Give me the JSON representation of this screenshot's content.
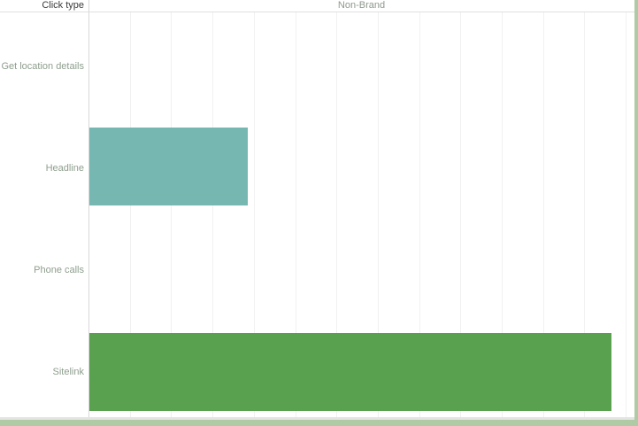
{
  "header": {
    "row_field": "Click type",
    "column_value": "Non-Brand"
  },
  "colors": {
    "teal_bar": "#76B7B2",
    "green_bar": "#59A14F",
    "gridline": "#F1F1F1",
    "header_divider": "#E0E0E0",
    "axis_separator": "#D9D9D9",
    "category_label_text": "#8E9E8E",
    "column_header_text": "#8E988E",
    "row_field_text": "#3B3B3B",
    "accent_strip": "#AECBA5"
  },
  "chart_data": {
    "type": "bar",
    "orientation": "horizontal",
    "title": "Non-Brand",
    "row_dimension": "Click type",
    "categories": [
      "Get location details",
      "Headline",
      "Phone calls",
      "Sitelink"
    ],
    "series": [
      {
        "name": "Non-Brand",
        "values_pct_of_plot_width": [
          0,
          29.0,
          0,
          95.7
        ]
      }
    ],
    "bar_colors": [
      "",
      "#76B7B2",
      "",
      "#59A14F"
    ],
    "value_axis_labels_visible": false,
    "gridline_count": 13,
    "grid": true,
    "legend": "none"
  }
}
